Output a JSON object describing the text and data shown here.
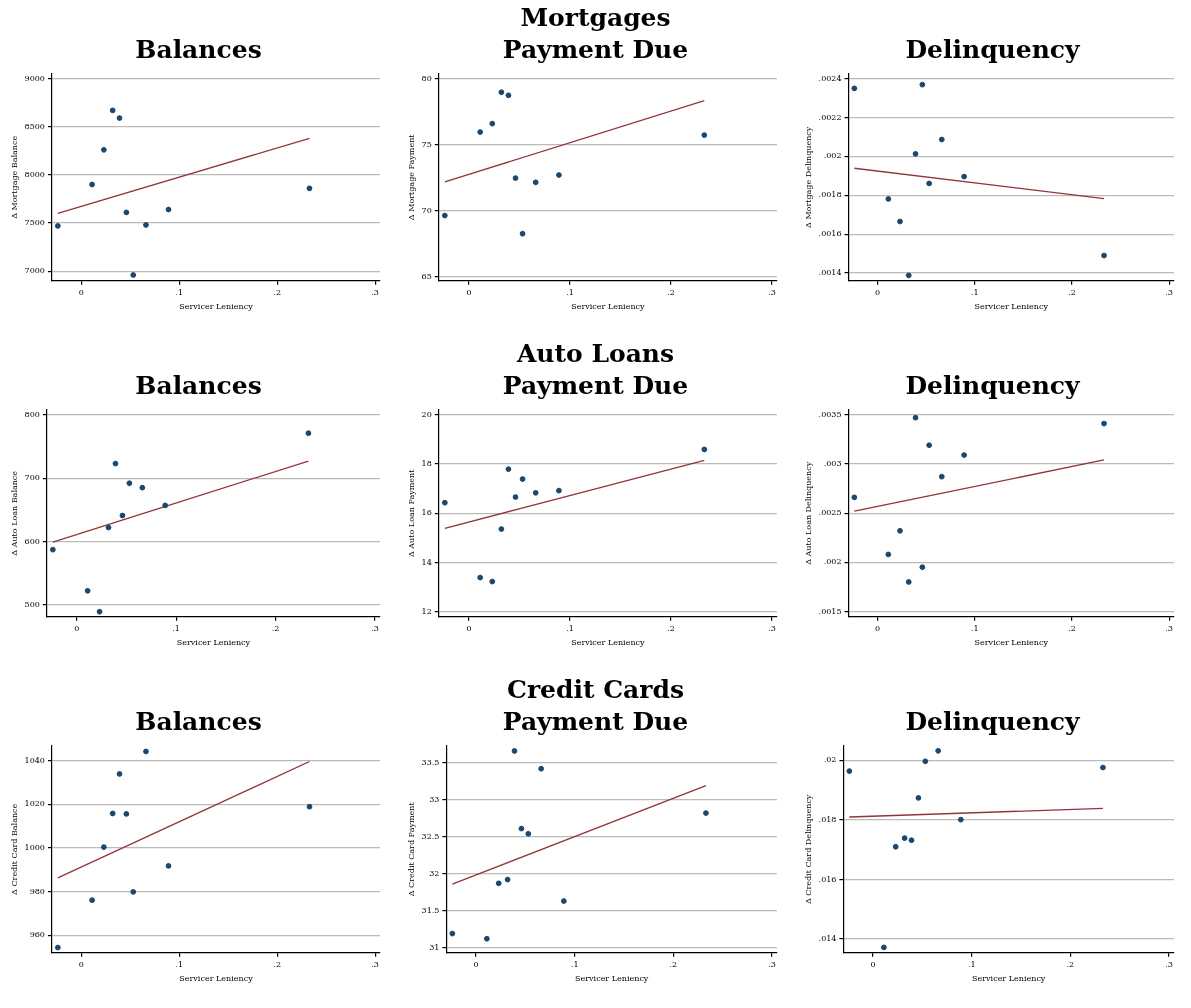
{
  "chart_data": [
    {
      "type": "scatter",
      "title": "Balances",
      "xlabel": "Servicer Leniency",
      "ylabel": "Δ Mortgage Balance",
      "xlim": [
        -0.03,
        0.305
      ],
      "xticks": [
        {
          "value": 0,
          "label": "0"
        },
        {
          "value": 0.1,
          "label": ".1"
        },
        {
          "value": 0.2,
          "label": ".2"
        },
        {
          "value": 0.3,
          "label": ".3"
        }
      ],
      "ylim": [
        6900,
        9050
      ],
      "yticks": [
        7000,
        7500,
        8000,
        8500,
        9000
      ],
      "grid": "y",
      "series": [
        {
          "type": "scatter",
          "marker": "circle",
          "color": "#1a476f",
          "x": [
            -0.024,
            0.011,
            0.023,
            0.032,
            0.039,
            0.046,
            0.053,
            0.066,
            0.089,
            0.233
          ],
          "values": [
            7470,
            7900,
            8260,
            8670,
            8590,
            7610,
            6960,
            7480,
            7640,
            7860
          ]
        },
        {
          "type": "line",
          "marker": "none",
          "color": "#90353b",
          "x": [
            -0.024,
            0.233
          ],
          "values": [
            7600,
            8380
          ]
        }
      ]
    },
    {
      "type": "scatter",
      "title": "Mortgages",
      "subtitle": "Payment Due",
      "xlabel": "Servicer Leniency",
      "ylabel": "Δ Mortgage Payment",
      "xlim": [
        -0.03,
        0.305
      ],
      "xticks": [
        {
          "value": 0,
          "label": "0"
        },
        {
          "value": 0.1,
          "label": ".1"
        },
        {
          "value": 0.2,
          "label": ".2"
        },
        {
          "value": 0.3,
          "label": ".3"
        }
      ],
      "ylim": [
        64.7,
        80.4
      ],
      "yticks": [
        65,
        70,
        75,
        80
      ],
      "grid": "y",
      "series": [
        {
          "type": "scatter",
          "marker": "circle",
          "color": "#1a476f",
          "x": [
            -0.024,
            0.011,
            0.023,
            0.032,
            0.039,
            0.046,
            0.053,
            0.066,
            0.089,
            0.233
          ],
          "values": [
            69.65,
            75.98,
            76.62,
            79.0,
            78.77,
            72.49,
            68.27,
            72.17,
            72.72,
            75.75
          ]
        },
        {
          "type": "line",
          "marker": "none",
          "color": "#90353b",
          "x": [
            -0.024,
            0.233
          ],
          "values": [
            72.2,
            78.37
          ]
        }
      ]
    },
    {
      "type": "scatter",
      "title": "Delinquency",
      "xlabel": "Servicer Leniency",
      "ylabel": "Δ Mortgage Delinquency",
      "xlim": [
        -0.03,
        0.305
      ],
      "xticks": [
        {
          "value": 0,
          "label": "0"
        },
        {
          "value": 0.1,
          "label": ".1"
        },
        {
          "value": 0.2,
          "label": ".2"
        },
        {
          "value": 0.3,
          "label": ".3"
        }
      ],
      "ylim": [
        0.00136,
        0.002425
      ],
      "yticks": [
        {
          "value": 0.0014,
          "label": ".0014"
        },
        {
          "value": 0.0016,
          "label": ".0016"
        },
        {
          "value": 0.0018,
          "label": ".0018"
        },
        {
          "value": 0.002,
          "label": ".002"
        },
        {
          "value": 0.0022,
          "label": ".0022"
        },
        {
          "value": 0.0024,
          "label": ".0024"
        }
      ],
      "grid": "y",
      "series": [
        {
          "type": "scatter",
          "marker": "circle",
          "color": "#1a476f",
          "x": [
            -0.024,
            0.011,
            0.023,
            0.032,
            0.039,
            0.046,
            0.053,
            0.066,
            0.089,
            0.233
          ],
          "values": [
            0.00235,
            0.001781,
            0.001665,
            0.001388,
            0.002013,
            0.002369,
            0.001861,
            0.002087,
            0.001896,
            0.00149
          ]
        },
        {
          "type": "line",
          "marker": "none",
          "color": "#90353b",
          "x": [
            -0.024,
            0.233
          ],
          "values": [
            0.001939,
            0.001783
          ]
        }
      ]
    },
    {
      "type": "scatter",
      "title": "Balances",
      "xlabel": "Servicer Leniency",
      "ylabel": "Δ Auto Loan Balance",
      "xlim": [
        -0.03,
        0.305
      ],
      "xticks": [
        {
          "value": 0,
          "label": "0"
        },
        {
          "value": 0.1,
          "label": ".1"
        },
        {
          "value": 0.2,
          "label": ".2"
        },
        {
          "value": 0.3,
          "label": ".3"
        }
      ],
      "ylim": [
        481,
        808
      ],
      "yticks": [
        500,
        600,
        700,
        800
      ],
      "grid": "y",
      "series": [
        {
          "type": "scatter",
          "marker": "circle",
          "color": "#1a476f",
          "x": [
            -0.024,
            0.011,
            0.023,
            0.032,
            0.039,
            0.046,
            0.053,
            0.066,
            0.089,
            0.233
          ],
          "values": [
            587,
            522,
            489,
            622,
            723,
            641,
            692,
            685,
            657,
            771
          ]
        },
        {
          "type": "line",
          "marker": "none",
          "color": "#90353b",
          "x": [
            -0.024,
            0.233
          ],
          "values": [
            599,
            727
          ]
        }
      ]
    },
    {
      "type": "scatter",
      "title": "Auto Loans",
      "subtitle": "Payment Due",
      "xlabel": "Servicer Leniency",
      "ylabel": "Δ Auto Loan Payment",
      "xlim": [
        -0.03,
        0.305
      ],
      "xticks": [
        {
          "value": 0,
          "label": "0"
        },
        {
          "value": 0.1,
          "label": ".1"
        },
        {
          "value": 0.2,
          "label": ".2"
        },
        {
          "value": 0.3,
          "label": ".3"
        }
      ],
      "ylim": [
        11.8,
        20.2
      ],
      "yticks": [
        12,
        14,
        16,
        18,
        20
      ],
      "grid": "y",
      "series": [
        {
          "type": "scatter",
          "marker": "circle",
          "color": "#1a476f",
          "x": [
            -0.024,
            0.011,
            0.023,
            0.032,
            0.039,
            0.046,
            0.053,
            0.066,
            0.089,
            0.233
          ],
          "values": [
            16.43,
            13.39,
            13.23,
            15.36,
            17.79,
            16.66,
            17.39,
            16.83,
            16.92,
            18.59
          ]
        },
        {
          "type": "line",
          "marker": "none",
          "color": "#90353b",
          "x": [
            -0.024,
            0.233
          ],
          "values": [
            15.39,
            18.15
          ]
        }
      ]
    },
    {
      "type": "scatter",
      "title": "Delinquency",
      "xlabel": "Servicer Leniency",
      "ylabel": "Δ Auto Loan Delinquency",
      "xlim": [
        -0.03,
        0.305
      ],
      "xticks": [
        {
          "value": 0,
          "label": "0"
        },
        {
          "value": 0.1,
          "label": ".1"
        },
        {
          "value": 0.2,
          "label": ".2"
        },
        {
          "value": 0.3,
          "label": ".3"
        }
      ],
      "ylim": [
        0.001446,
        0.00355
      ],
      "yticks": [
        {
          "value": 0.0015,
          "label": ".0015"
        },
        {
          "value": 0.002,
          "label": ".002"
        },
        {
          "value": 0.0025,
          "label": ".0025"
        },
        {
          "value": 0.003,
          "label": ".003"
        },
        {
          "value": 0.0035,
          "label": ".0035"
        }
      ],
      "grid": "y",
      "series": [
        {
          "type": "scatter",
          "marker": "circle",
          "color": "#1a476f",
          "x": [
            -0.024,
            0.011,
            0.023,
            0.032,
            0.039,
            0.046,
            0.053,
            0.066,
            0.089,
            0.233
          ],
          "values": [
            0.00266,
            0.00208,
            0.00232,
            0.0018,
            0.00347,
            0.00195,
            0.00319,
            0.00287,
            0.00309,
            0.00341
          ]
        },
        {
          "type": "line",
          "marker": "none",
          "color": "#90353b",
          "x": [
            -0.024,
            0.233
          ],
          "values": [
            0.00252,
            0.00304
          ]
        }
      ]
    },
    {
      "type": "scatter",
      "title": "Balances",
      "xlabel": "Servicer Leniency",
      "ylabel": "Δ Credit Card Balance",
      "xlim": [
        -0.03,
        0.305
      ],
      "xticks": [
        {
          "value": 0,
          "label": "0"
        },
        {
          "value": 0.1,
          "label": ".1"
        },
        {
          "value": 0.2,
          "label": ".2"
        },
        {
          "value": 0.3,
          "label": ".3"
        }
      ],
      "ylim": [
        951.9,
        1046.7
      ],
      "yticks": [
        960,
        980,
        1000,
        1020,
        1040
      ],
      "grid": "y",
      "series": [
        {
          "type": "scatter",
          "marker": "circle",
          "color": "#1a476f",
          "x": [
            -0.024,
            0.011,
            0.023,
            0.032,
            0.039,
            0.046,
            0.053,
            0.066,
            0.089,
            0.233
          ],
          "values": [
            954.3,
            976.0,
            1000.3,
            1015.7,
            1033.8,
            1015.5,
            979.8,
            1044.1,
            991.7,
            1018.8
          ]
        },
        {
          "type": "line",
          "marker": "none",
          "color": "#90353b",
          "x": [
            -0.024,
            0.233
          ],
          "values": [
            986.2,
            1039.5
          ]
        }
      ]
    },
    {
      "type": "scatter",
      "title": "Credit Cards",
      "subtitle": "Payment Due",
      "xlabel": "Servicer Leniency",
      "ylabel": "Δ Credit Card Payment",
      "xlim": [
        -0.03,
        0.305
      ],
      "xticks": [
        {
          "value": 0,
          "label": "0"
        },
        {
          "value": 0.1,
          "label": ".1"
        },
        {
          "value": 0.2,
          "label": ".2"
        },
        {
          "value": 0.3,
          "label": ".3"
        }
      ],
      "ylim": [
        30.93,
        33.73
      ],
      "yticks": [
        31,
        31.5,
        32,
        32.5,
        33,
        33.5
      ],
      "grid": "y",
      "series": [
        {
          "type": "scatter",
          "marker": "circle",
          "color": "#1a476f",
          "x": [
            -0.024,
            0.011,
            0.023,
            0.032,
            0.039,
            0.046,
            0.053,
            0.066,
            0.089,
            0.233
          ],
          "values": [
            31.19,
            31.12,
            31.87,
            31.92,
            33.66,
            32.61,
            32.54,
            33.42,
            31.63,
            32.82
          ]
        },
        {
          "type": "line",
          "marker": "none",
          "color": "#90353b",
          "x": [
            -0.024,
            0.233
          ],
          "values": [
            31.86,
            33.19
          ]
        }
      ]
    },
    {
      "type": "scatter",
      "title": "Delinquency",
      "xlabel": "Servicer Leniency",
      "ylabel": "Δ Credit Card Delinquency",
      "xlim": [
        -0.03,
        0.305
      ],
      "xticks": [
        {
          "value": 0,
          "label": "0"
        },
        {
          "value": 0.1,
          "label": ".1"
        },
        {
          "value": 0.2,
          "label": ".2"
        },
        {
          "value": 0.3,
          "label": ".3"
        }
      ],
      "ylim": [
        0.01354,
        0.02049
      ],
      "yticks": [
        {
          "value": 0.014,
          "label": ".014"
        },
        {
          "value": 0.016,
          "label": ".016"
        },
        {
          "value": 0.018,
          "label": ".018"
        },
        {
          "value": 0.02,
          "label": ".02"
        }
      ],
      "grid": "y",
      "series": [
        {
          "type": "scatter",
          "marker": "circle",
          "color": "#1a476f",
          "x": [
            -0.024,
            0.011,
            0.023,
            0.032,
            0.039,
            0.046,
            0.053,
            0.066,
            0.089,
            0.233
          ],
          "values": [
            0.01964,
            0.01372,
            0.0171,
            0.01739,
            0.01732,
            0.01874,
            0.01997,
            0.02032,
            0.01801,
            0.01976
          ]
        },
        {
          "type": "line",
          "marker": "none",
          "color": "#90353b",
          "x": [
            -0.024,
            0.233
          ],
          "values": [
            0.0181,
            0.01839
          ]
        }
      ]
    }
  ]
}
